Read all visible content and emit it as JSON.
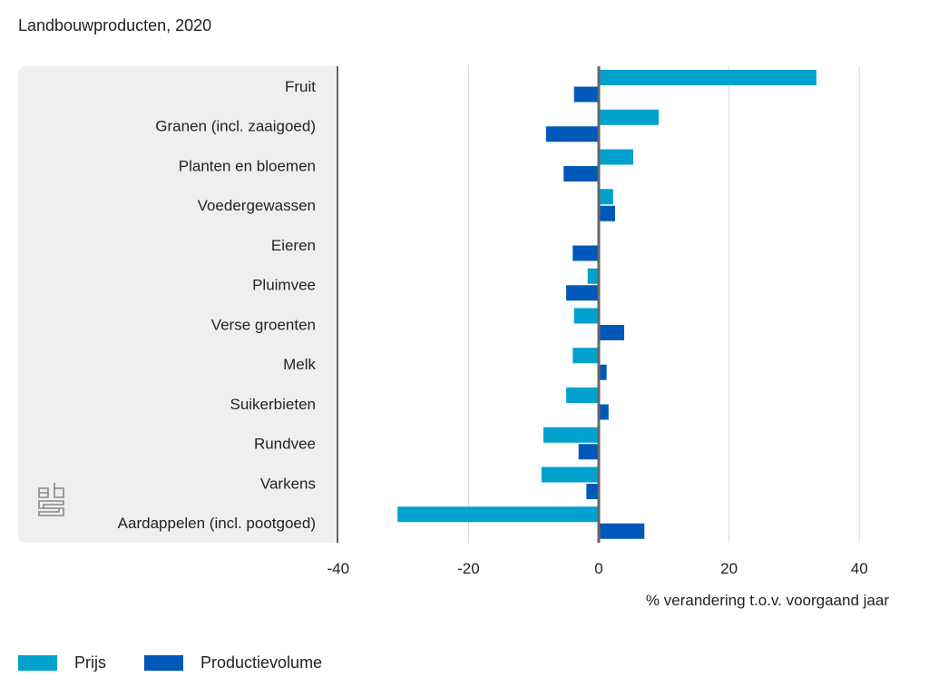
{
  "chart_data": {
    "type": "bar",
    "orientation": "horizontal",
    "title": "Landbouwproducten, 2020",
    "xlabel": "% verandering t.o.v. voorgaand jaar",
    "ylabel": "",
    "xlim": [
      -40,
      48
    ],
    "xticks": [
      -40,
      -20,
      0,
      20,
      40
    ],
    "grid": true,
    "legend_position": "bottom-left",
    "categories": [
      "Fruit",
      "Granen (incl. zaaigoed)",
      "Planten en bloemen",
      "Voedergewassen",
      "Eieren",
      "Pluimvee",
      "Verse groenten",
      "Melk",
      "Suikerbieten",
      "Rundvee",
      "Varkens",
      "Aardappelen (incl. pootgoed)"
    ],
    "series": [
      {
        "name": "Prijs",
        "color": "#00a1cd",
        "values": [
          33.4,
          9.2,
          5.3,
          2.2,
          0,
          -1.7,
          -3.8,
          -4.0,
          -5.0,
          -8.5,
          -8.8,
          -30.9
        ]
      },
      {
        "name": "Productievolume",
        "color": "#0058b8",
        "values": [
          -3.8,
          -8.1,
          -5.4,
          2.5,
          -4.0,
          -5.0,
          3.9,
          1.2,
          1.5,
          -3.1,
          -1.9,
          7.0
        ]
      }
    ]
  },
  "logo": "cbs"
}
